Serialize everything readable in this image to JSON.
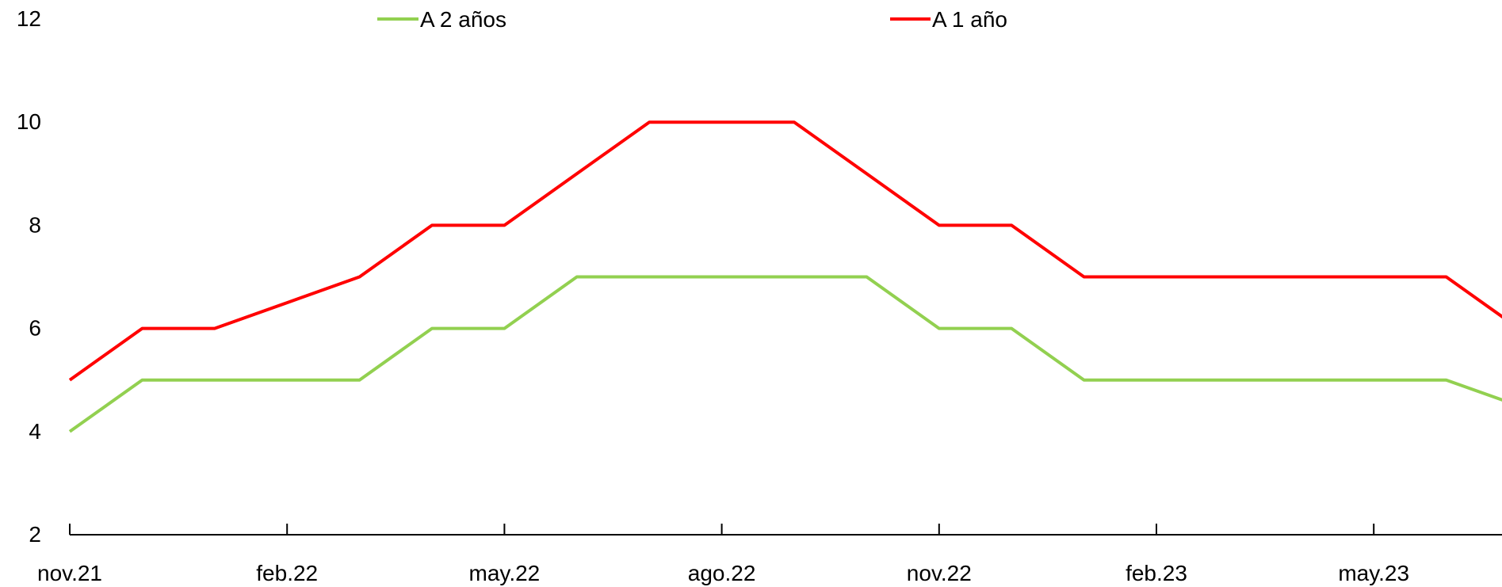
{
  "chart_data": {
    "type": "line",
    "title": "",
    "xlabel": "",
    "ylabel": "",
    "ylim": [
      2,
      12
    ],
    "yticks": [
      2,
      4,
      6,
      8,
      10,
      12
    ],
    "grid": false,
    "legend_placement": "top",
    "x": [
      "nov.21",
      "dic.21",
      "ene.22",
      "feb.22",
      "mar.22",
      "abr.22",
      "may.22",
      "jun.22",
      "jul.22",
      "ago.22",
      "sep.22",
      "oct.22",
      "nov.22",
      "dic.22",
      "ene.23",
      "feb.23",
      "mar.23",
      "abr.23",
      "may.23",
      "jun.23",
      "jul.23"
    ],
    "xticks": [
      "nov.21",
      "feb.22",
      "may.22",
      "ago.22",
      "nov.22",
      "feb.23",
      "may.23"
    ],
    "series": [
      {
        "name": "A 2 años",
        "color": "#92d050",
        "values": [
          4,
          5,
          5,
          5,
          5,
          6,
          6,
          7,
          7,
          7,
          7,
          7,
          6,
          6,
          5,
          5,
          5,
          5,
          5,
          5,
          4.5
        ]
      },
      {
        "name": "A 1 año",
        "color": "#ff0000",
        "values": [
          5,
          6,
          6,
          6.5,
          7,
          8,
          8,
          9,
          10,
          10,
          10,
          9,
          8,
          8,
          7,
          7,
          7,
          7,
          7,
          7,
          6
        ]
      }
    ]
  }
}
